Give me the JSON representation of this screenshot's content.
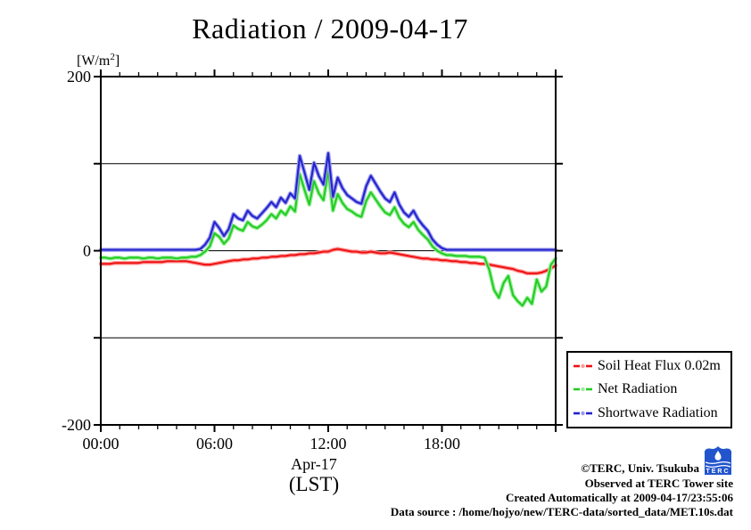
{
  "header": {
    "title": "Radiation / 2009-04-17"
  },
  "axes": {
    "y_unit": {
      "pre": "[W/m",
      "sup": "2",
      "post": "]"
    },
    "x_date_label": "Apr-17",
    "x_zone_label": "(LST)"
  },
  "footer": {
    "copyright": "©TERC, Univ. Tsukuba",
    "observed": "Observed at TERC Tower site",
    "created": "Created Automatically at 2009-04-17/23:55:06",
    "source": "Data source : /home/hojyo/new/TERC-data/sorted_data/MET.10s.dat",
    "logo_text": "TERC",
    "logo_color": "#2255cc"
  },
  "chart_data": {
    "type": "line",
    "title": "Radiation / 2009-04-17",
    "xlabel": "Apr-17 (LST)",
    "ylabel": "[W/m2]",
    "xlim": [
      0,
      24
    ],
    "ylim": [
      -200,
      200
    ],
    "grid": "horizontal gridlines at -100, 0, 100; no vertical grid",
    "legend_position": "outside lower right",
    "gridlines_y": [
      100,
      0,
      -100
    ],
    "x_minor_every_hours": 1,
    "x_major_every_hours": 6,
    "y_tick_every": 100,
    "x_major_ticks": [
      {
        "t": 0,
        "label": "00:00"
      },
      {
        "t": 6,
        "label": "06:00"
      },
      {
        "t": 12,
        "label": "12:00"
      },
      {
        "t": 18,
        "label": "18:00"
      }
    ],
    "y_ticks": [
      {
        "v": 200,
        "label": "200"
      },
      {
        "v": 0,
        "label": "0"
      },
      {
        "v": -200,
        "label": "-200"
      }
    ],
    "x_step_hours": 0.25,
    "series": [
      {
        "name": "Soil Heat Flux 0.02m",
        "color": "#ee1111",
        "halo": "#ff9999",
        "values": [
          -15,
          -15,
          -15,
          -14,
          -14,
          -14,
          -14,
          -14,
          -14,
          -13,
          -13,
          -13,
          -13,
          -13,
          -12,
          -12,
          -12,
          -12,
          -12,
          -13,
          -14,
          -15,
          -16,
          -16,
          -15,
          -14,
          -13,
          -12,
          -11,
          -11,
          -10,
          -10,
          -9,
          -9,
          -8,
          -8,
          -7,
          -7,
          -6,
          -6,
          -5,
          -5,
          -4,
          -4,
          -3,
          -3,
          -2,
          -1,
          -1,
          1,
          2,
          1,
          0,
          -1,
          -1,
          -2,
          -2,
          -1,
          -2,
          -3,
          -3,
          -2,
          -3,
          -4,
          -5,
          -6,
          -7,
          -8,
          -9,
          -9,
          -10,
          -10,
          -11,
          -11,
          -12,
          -12,
          -13,
          -13,
          -14,
          -14,
          -15,
          -15,
          -16,
          -17,
          -18,
          -19,
          -20,
          -21,
          -23,
          -24,
          -26,
          -26,
          -26,
          -25,
          -23,
          -20,
          -17
        ]
      },
      {
        "name": "Net Radiation",
        "color": "#22cc22",
        "halo": "#99ee99",
        "values": [
          -8,
          -8,
          -9,
          -8,
          -8,
          -9,
          -8,
          -8,
          -8,
          -9,
          -8,
          -8,
          -9,
          -8,
          -8,
          -8,
          -9,
          -8,
          -8,
          -7,
          -7,
          -5,
          -1,
          5,
          20,
          16,
          8,
          14,
          29,
          25,
          23,
          33,
          28,
          26,
          30,
          35,
          42,
          37,
          46,
          41,
          51,
          45,
          88,
          70,
          53,
          80,
          66,
          58,
          92,
          46,
          65,
          55,
          48,
          45,
          41,
          39,
          57,
          67,
          59,
          51,
          44,
          41,
          50,
          38,
          31,
          27,
          33,
          24,
          18,
          13,
          5,
          0,
          -3,
          -5,
          -5,
          -6,
          -6,
          -6,
          -7,
          -7,
          -7,
          -8,
          -22,
          -45,
          -54,
          -37,
          -29,
          -51,
          -58,
          -63,
          -54,
          -61,
          -33,
          -47,
          -41,
          -16,
          -9
        ]
      },
      {
        "name": "Shortwave Radiation",
        "color": "#2222cc",
        "halo": "#9999ee",
        "values": [
          1,
          1,
          1,
          1,
          1,
          1,
          1,
          1,
          1,
          1,
          1,
          1,
          1,
          1,
          1,
          1,
          1,
          1,
          1,
          1,
          1,
          2,
          7,
          15,
          33,
          26,
          17,
          25,
          42,
          37,
          35,
          46,
          40,
          37,
          43,
          49,
          56,
          50,
          61,
          55,
          66,
          60,
          109,
          90,
          70,
          101,
          86,
          76,
          112,
          62,
          84,
          72,
          64,
          60,
          56,
          54,
          74,
          86,
          77,
          68,
          60,
          56,
          67,
          53,
          44,
          39,
          46,
          36,
          29,
          23,
          13,
          7,
          3,
          1,
          1,
          1,
          1,
          1,
          1,
          1,
          1,
          1,
          1,
          1,
          1,
          1,
          1,
          1,
          1,
          1,
          1,
          1,
          1,
          1,
          1,
          1,
          1
        ]
      }
    ]
  }
}
